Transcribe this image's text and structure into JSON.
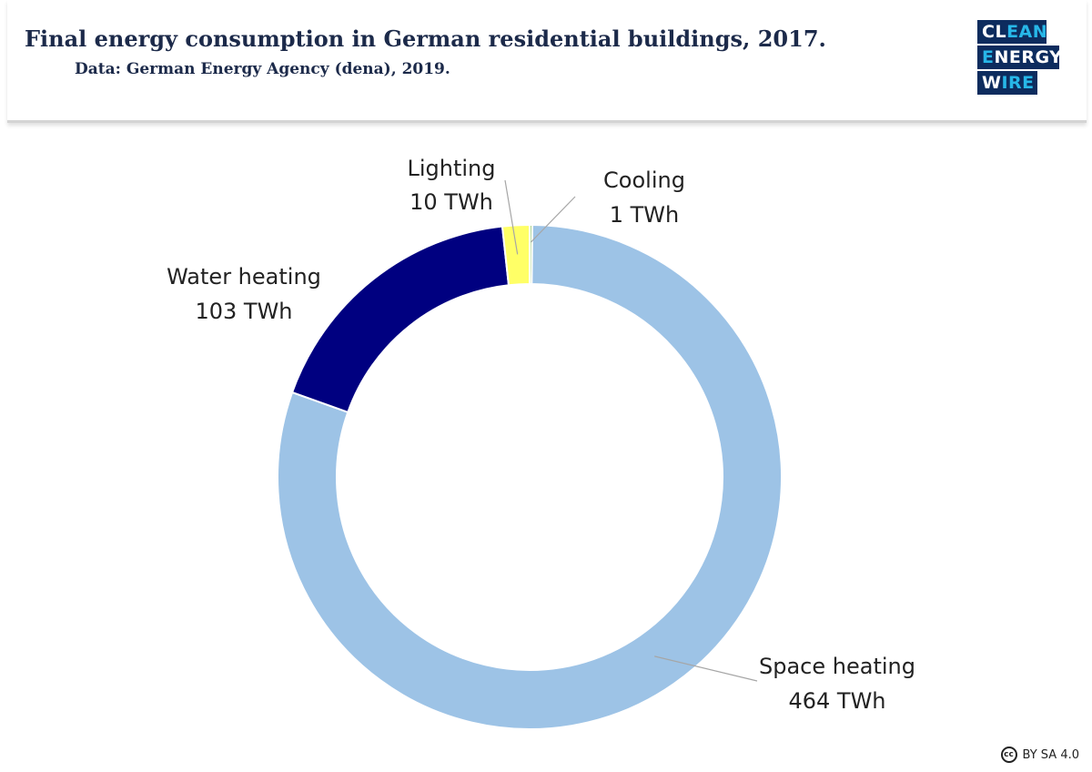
{
  "header": {
    "title": "Final energy consumption in German residential buildings, 2017.",
    "source": "Data: German Energy Agency (dena), 2019."
  },
  "logo": {
    "line1_a": "CL",
    "line1_b": "EAN",
    "line2_a": "E",
    "line2_b": "NERGY",
    "line3_a": "W",
    "line3_b": "IRE"
  },
  "license": {
    "icon_label": "cc",
    "text": "BY SA 4.0"
  },
  "colors": {
    "space_heating": "#9dc3e6",
    "water_heating": "#000080",
    "lighting": "#ffff66",
    "cooling": "#a9d18e",
    "brand_navy": "#0d2c5e",
    "brand_cyan": "#27b7e8"
  },
  "chart_data": {
    "type": "pie",
    "variant": "donut",
    "title": "Final energy consumption in German residential buildings, 2017.",
    "unit": "TWh",
    "categories": [
      "Cooling",
      "Space heating",
      "Water heating",
      "Lighting"
    ],
    "values": [
      1,
      464,
      103,
      10
    ],
    "labels": [
      {
        "name": "Cooling",
        "value_text": "1 TWh"
      },
      {
        "name": "Space heating",
        "value_text": "464 TWh"
      },
      {
        "name": "Water heating",
        "value_text": "103 TWh"
      },
      {
        "name": "Lighting",
        "value_text": "10 TWh"
      }
    ]
  }
}
